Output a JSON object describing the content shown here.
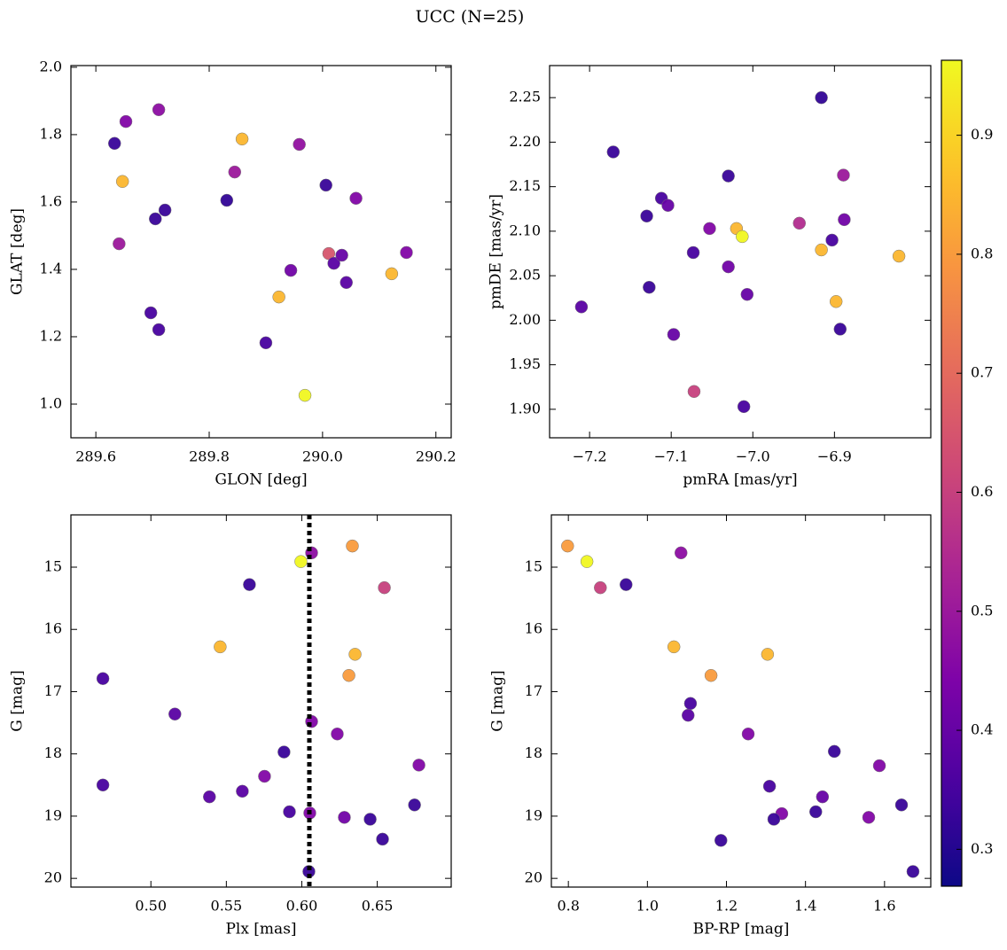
{
  "title": "UCC (N=25)",
  "colorbar": {
    "colormap": "plasma",
    "clim": [
      0.269,
      0.963
    ],
    "ticks": [
      0.3,
      0.4,
      0.5,
      0.6,
      0.7,
      0.8,
      0.9
    ]
  },
  "chart_data": [
    {
      "type": "scatter",
      "xlabel": "GLON [deg]",
      "ylabel": "GLAT [deg]",
      "xlim": [
        289.556,
        290.227
      ],
      "ylim": [
        0.9,
        2.005
      ],
      "xticks": [
        289.6,
        289.8,
        {
          "value": 290.0,
          "label": "290.0"
        },
        290.2
      ],
      "yticks": [
        {
          "value": 1.0,
          "label": "1.0"
        },
        1.2,
        1.4,
        1.6,
        1.8,
        {
          "value": 2.0,
          "label": "2.0"
        }
      ],
      "x": [
        289.633,
        289.653,
        289.711,
        289.647,
        289.641,
        289.705,
        289.722,
        289.697,
        289.711,
        289.831,
        289.858,
        289.845,
        289.959,
        290.006,
        290.059,
        289.944,
        290.011,
        290.02,
        290.034,
        290.042,
        290.148,
        290.122,
        289.923,
        289.9,
        289.969
      ],
      "y": [
        1.774,
        1.839,
        1.874,
        1.661,
        1.476,
        1.55,
        1.576,
        1.271,
        1.221,
        1.605,
        1.787,
        1.689,
        1.771,
        1.65,
        1.611,
        1.397,
        1.447,
        1.418,
        1.442,
        1.361,
        1.45,
        1.387,
        1.318,
        1.182,
        1.026
      ],
      "c": [
        0.33,
        0.45,
        0.47,
        0.85,
        0.5,
        0.33,
        0.33,
        0.35,
        0.35,
        0.32,
        0.85,
        0.5,
        0.48,
        0.33,
        0.45,
        0.42,
        0.65,
        0.38,
        0.4,
        0.38,
        0.45,
        0.85,
        0.85,
        0.35,
        0.96
      ]
    },
    {
      "type": "scatter",
      "xlabel": "pmRA [mas/yr]",
      "ylabel": "pmDE [mas/yr]",
      "xlim": [
        -7.249,
        -6.782
      ],
      "ylim": [
        1.868,
        2.286
      ],
      "xticks": [
        {
          "value": -7.2,
          "label": "−7.2"
        },
        {
          "value": -7.1,
          "label": "−7.1"
        },
        {
          "value": -7.0,
          "label": "−7.0"
        },
        {
          "value": -6.9,
          "label": "−6.9"
        }
      ],
      "yticks": [
        {
          "value": 1.9,
          "label": "1.90"
        },
        1.95,
        {
          "value": 2.0,
          "label": "2.00"
        },
        2.05,
        {
          "value": 2.1,
          "label": "2.10"
        },
        2.15,
        {
          "value": 2.2,
          "label": "2.20"
        },
        2.25
      ],
      "x": [
        -6.916,
        -7.171,
        -7.03,
        -6.889,
        -7.112,
        -7.104,
        -7.13,
        -7.053,
        -7.02,
        -7.013,
        -6.943,
        -6.888,
        -6.903,
        -7.073,
        -6.916,
        -6.821,
        -7.03,
        -7.127,
        -7.007,
        -7.21,
        -6.898,
        -6.893,
        -7.097,
        -7.072,
        -7.011
      ],
      "y": [
        2.25,
        2.189,
        2.162,
        2.163,
        2.137,
        2.129,
        2.117,
        2.103,
        2.103,
        2.094,
        2.109,
        2.113,
        2.09,
        2.076,
        2.079,
        2.072,
        2.06,
        2.037,
        2.029,
        2.015,
        2.021,
        1.99,
        1.984,
        1.92,
        1.903
      ],
      "c": [
        0.32,
        0.33,
        0.33,
        0.5,
        0.35,
        0.4,
        0.33,
        0.45,
        0.85,
        0.96,
        0.55,
        0.42,
        0.35,
        0.35,
        0.85,
        0.85,
        0.42,
        0.33,
        0.4,
        0.38,
        0.85,
        0.33,
        0.4,
        0.6,
        0.35
      ]
    },
    {
      "type": "scatter",
      "xlabel": "Plx [mas]",
      "ylabel": "G [mag]",
      "xlim": [
        0.447,
        0.699
      ],
      "ylim": [
        20.14,
        14.16
      ],
      "xticks": [
        {
          "value": 0.5,
          "label": "0.50"
        },
        0.55,
        {
          "value": 0.6,
          "label": "0.60"
        },
        0.65
      ],
      "yticks": [
        15,
        16,
        17,
        18,
        19,
        20
      ],
      "reference_line": {
        "x": 0.605,
        "style": "dotted"
      },
      "x": [
        0.6335,
        0.5994,
        0.6065,
        0.6547,
        0.5653,
        0.5459,
        0.6353,
        0.6312,
        0.4682,
        0.5159,
        0.6065,
        0.6235,
        0.5882,
        0.6776,
        0.5753,
        0.4682,
        0.5606,
        0.5388,
        0.6747,
        0.5918,
        0.6053,
        0.6282,
        0.6453,
        0.6535,
        0.6047
      ],
      "y": [
        14.66,
        14.91,
        14.77,
        15.33,
        15.28,
        16.28,
        16.4,
        16.74,
        16.79,
        17.36,
        17.48,
        17.68,
        17.97,
        18.18,
        18.36,
        18.5,
        18.6,
        18.69,
        18.82,
        18.93,
        18.95,
        19.02,
        19.05,
        19.37,
        19.89
      ],
      "c": [
        0.8,
        0.96,
        0.47,
        0.6,
        0.33,
        0.85,
        0.85,
        0.8,
        0.35,
        0.38,
        0.45,
        0.45,
        0.33,
        0.45,
        0.45,
        0.35,
        0.38,
        0.38,
        0.33,
        0.35,
        0.45,
        0.42,
        0.33,
        0.33,
        0.33
      ]
    },
    {
      "type": "scatter",
      "xlabel": "BP-RP [mag]",
      "ylabel": "G [mag]",
      "xlim": [
        0.757,
        1.717
      ],
      "ylim": [
        20.14,
        14.16
      ],
      "xticks": [
        0.8,
        {
          "value": 1.0,
          "label": "1.0"
        },
        1.2,
        1.4,
        1.6
      ],
      "yticks": [
        15,
        16,
        17,
        18,
        19,
        20
      ],
      "x": [
        0.798,
        0.847,
        1.085,
        0.881,
        0.946,
        1.067,
        1.304,
        1.161,
        1.109,
        1.103,
        1.255,
        1.473,
        1.587,
        1.309,
        1.443,
        1.643,
        1.34,
        1.426,
        1.56,
        1.32,
        1.186,
        1.672
      ],
      "y": [
        14.66,
        14.91,
        14.77,
        15.33,
        15.28,
        16.28,
        16.4,
        16.74,
        17.19,
        17.38,
        17.68,
        17.96,
        18.19,
        18.52,
        18.69,
        18.82,
        18.96,
        18.93,
        19.02,
        19.05,
        19.39,
        19.89
      ],
      "c": [
        0.8,
        0.96,
        0.47,
        0.6,
        0.33,
        0.85,
        0.85,
        0.8,
        0.35,
        0.38,
        0.45,
        0.33,
        0.45,
        0.35,
        0.4,
        0.33,
        0.45,
        0.33,
        0.45,
        0.33,
        0.33,
        0.33
      ]
    }
  ]
}
